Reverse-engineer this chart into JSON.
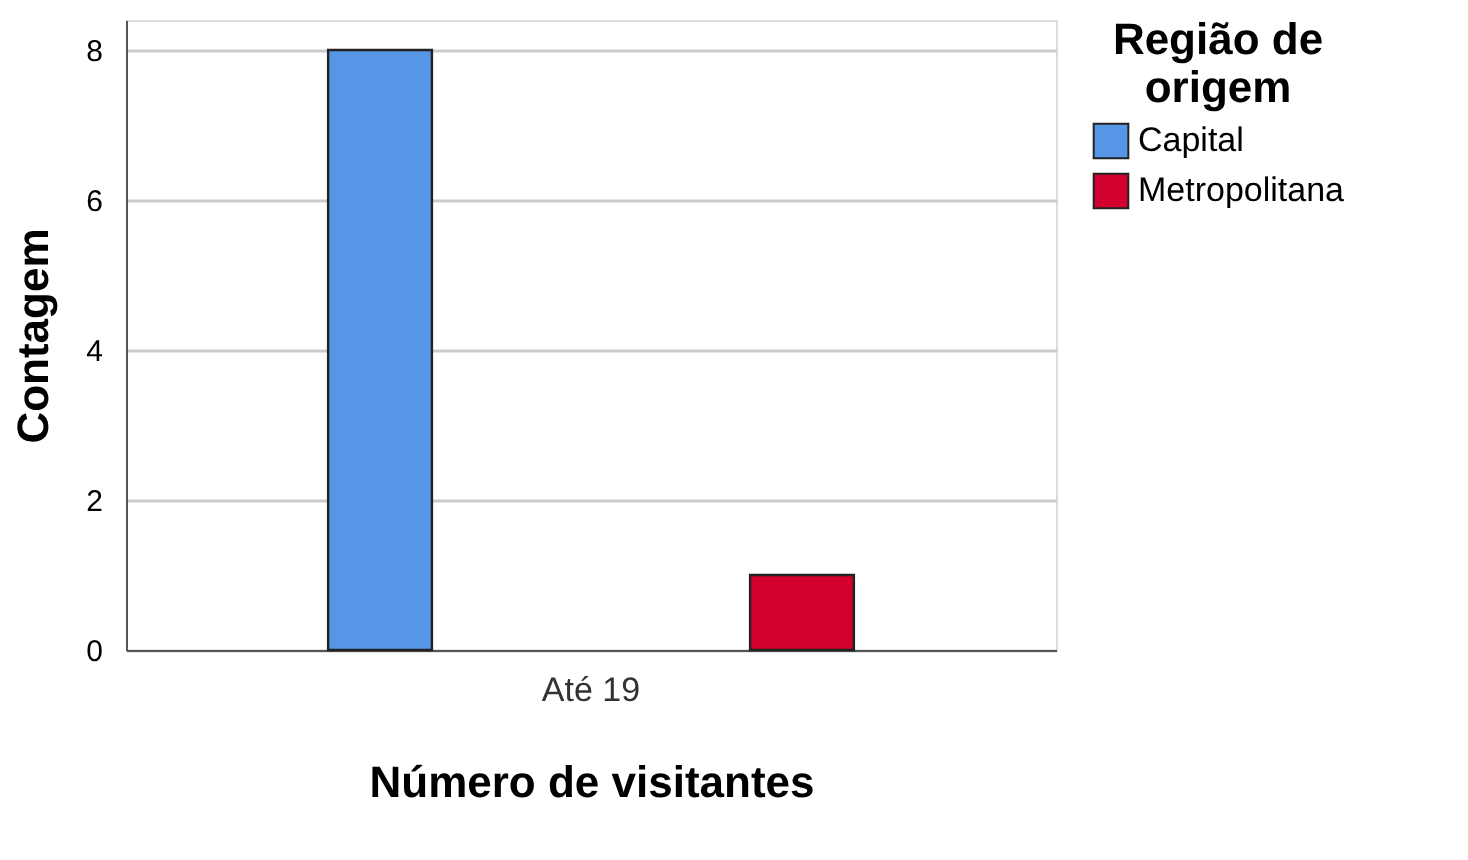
{
  "chart_data": {
    "type": "bar",
    "xlabel": "Número de visitantes",
    "ylabel": "Contagem",
    "legend_title": "Região de origem",
    "categories": [
      "Até 19"
    ],
    "series": [
      {
        "name": "Capital",
        "color": "#5596e6",
        "values": [
          8
        ]
      },
      {
        "name": "Metropolitana",
        "color": "#d1002c",
        "values": [
          1
        ]
      }
    ],
    "ylim": [
      0,
      8.4
    ],
    "yticks": [
      0,
      2,
      4,
      6,
      8
    ],
    "grid": "y",
    "legend": "top right"
  }
}
